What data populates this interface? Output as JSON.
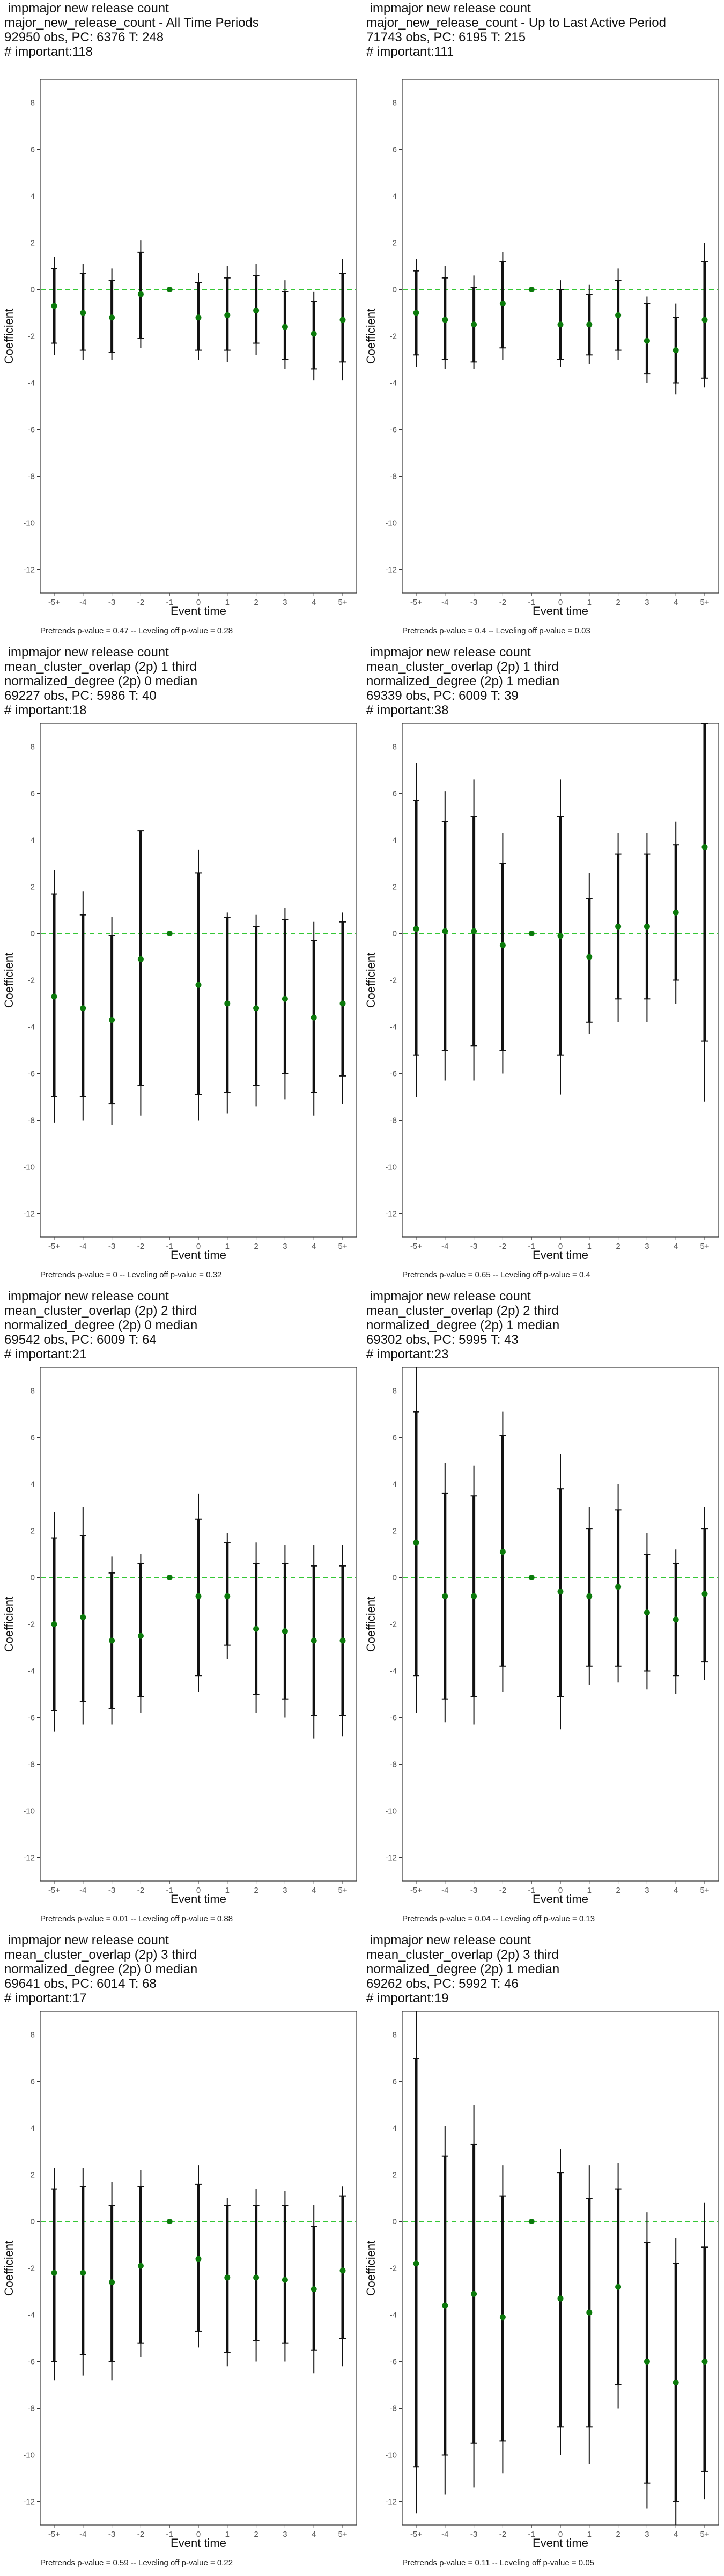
{
  "chart_data": [
    {
      "type": "scatter",
      "title": [
        "impmajor new release count",
        "major_new_release_count - All Time Periods",
        "92950 obs, PC: 6376 T: 248",
        "# important:118"
      ],
      "xlabel": "Event time",
      "ylabel": "Coefficient",
      "categories": [
        "-5+",
        "-4",
        "-3",
        "-2",
        "-1",
        "0",
        "1",
        "2",
        "3",
        "4",
        "5+"
      ],
      "coef": [
        -0.7,
        -1.0,
        -1.2,
        -0.2,
        0.0,
        -1.2,
        -1.1,
        -0.9,
        -1.6,
        -1.9,
        -1.3
      ],
      "ci90": [
        [
          -2.3,
          0.9
        ],
        [
          -2.6,
          0.7
        ],
        [
          -2.7,
          0.4
        ],
        [
          -2.1,
          1.6
        ],
        null,
        [
          -2.6,
          0.3
        ],
        [
          -2.6,
          0.5
        ],
        [
          -2.3,
          0.6
        ],
        [
          -3.0,
          -0.1
        ],
        [
          -3.4,
          -0.5
        ],
        [
          -3.1,
          0.7
        ]
      ],
      "ci95": [
        [
          -2.8,
          1.4
        ],
        [
          -3.0,
          1.1
        ],
        [
          -3.0,
          0.9
        ],
        [
          -2.5,
          2.1
        ],
        null,
        [
          -3.0,
          0.7
        ],
        [
          -3.1,
          1.0
        ],
        [
          -2.8,
          1.1
        ],
        [
          -3.4,
          0.4
        ],
        [
          -3.9,
          -0.1
        ],
        [
          -3.9,
          1.3
        ]
      ],
      "ylim": [
        -13,
        9
      ],
      "yticks": [
        -12,
        -10,
        -8,
        -6,
        -4,
        -2,
        0,
        2,
        4,
        6,
        8
      ],
      "footer": "Pretrends p-value = 0.47 -- Leveling off p-value = 0.28"
    },
    {
      "type": "scatter",
      "title": [
        "impmajor new release count",
        "major_new_release_count - Up to Last Active Period",
        "71743 obs, PC: 6195 T: 215",
        "# important:111"
      ],
      "xlabel": "Event time",
      "ylabel": "Coefficient",
      "categories": [
        "-5+",
        "-4",
        "-3",
        "-2",
        "-1",
        "0",
        "1",
        "2",
        "3",
        "4",
        "5+"
      ],
      "coef": [
        -1.0,
        -1.3,
        -1.5,
        -0.6,
        0.0,
        -1.5,
        -1.5,
        -1.1,
        -2.2,
        -2.6,
        -1.3
      ],
      "ci90": [
        [
          -2.8,
          0.8
        ],
        [
          -3.0,
          0.5
        ],
        [
          -3.1,
          0.1
        ],
        [
          -2.5,
          1.2
        ],
        null,
        [
          -3.0,
          0.0
        ],
        [
          -2.8,
          -0.2
        ],
        [
          -2.6,
          0.4
        ],
        [
          -3.6,
          -0.6
        ],
        [
          -4.0,
          -1.2
        ],
        [
          -3.8,
          1.2
        ]
      ],
      "ci95": [
        [
          -3.3,
          1.3
        ],
        [
          -3.4,
          1.0
        ],
        [
          -3.4,
          0.6
        ],
        [
          -3.0,
          1.6
        ],
        null,
        [
          -3.3,
          0.4
        ],
        [
          -3.2,
          0.2
        ],
        [
          -3.0,
          0.9
        ],
        [
          -4.0,
          -0.3
        ],
        [
          -4.5,
          -0.6
        ],
        [
          -4.2,
          2.0
        ]
      ],
      "ylim": [
        -13,
        9
      ],
      "yticks": [
        -12,
        -10,
        -8,
        -6,
        -4,
        -2,
        0,
        2,
        4,
        6,
        8
      ],
      "footer": "Pretrends p-value = 0.4 -- Leveling off p-value = 0.03"
    },
    {
      "type": "scatter",
      "title": [
        "impmajor new release count",
        "mean_cluster_overlap (2p) 1 third",
        "normalized_degree (2p) 0 median",
        "69227 obs, PC: 5986 T: 40",
        "# important:18"
      ],
      "xlabel": "Event time",
      "ylabel": "Coefficient",
      "categories": [
        "-5+",
        "-4",
        "-3",
        "-2",
        "-1",
        "0",
        "1",
        "2",
        "3",
        "4",
        "5+"
      ],
      "coef": [
        -2.7,
        -3.2,
        -3.7,
        -1.1,
        0.0,
        -2.2,
        -3.0,
        -3.2,
        -2.8,
        -3.6,
        -3.0
      ],
      "ci90": [
        [
          -7.0,
          1.7
        ],
        [
          -7.0,
          0.8
        ],
        [
          -7.3,
          -0.1
        ],
        [
          -6.5,
          4.4
        ],
        null,
        [
          -6.9,
          2.6
        ],
        [
          -6.8,
          0.7
        ],
        [
          -6.5,
          0.3
        ],
        [
          -6.0,
          0.6
        ],
        [
          -6.8,
          -0.3
        ],
        [
          -6.1,
          0.5
        ]
      ],
      "ci95": [
        [
          -8.1,
          2.7
        ],
        [
          -8.0,
          1.8
        ],
        [
          -8.2,
          0.7
        ],
        [
          -7.8,
          4.4
        ],
        null,
        [
          -8.0,
          3.6
        ],
        [
          -7.7,
          0.9
        ],
        [
          -7.4,
          0.8
        ],
        [
          -7.1,
          1.1
        ],
        [
          -7.8,
          0.5
        ],
        [
          -7.3,
          0.9
        ]
      ],
      "ylim": [
        -13,
        9
      ],
      "yticks": [
        -12,
        -10,
        -8,
        -6,
        -4,
        -2,
        0,
        2,
        4,
        6,
        8
      ],
      "footer": "Pretrends p-value = 0 -- Leveling off p-value = 0.32"
    },
    {
      "type": "scatter",
      "title": [
        "impmajor new release count",
        "mean_cluster_overlap (2p) 1 third",
        "normalized_degree (2p) 1 median",
        "69339 obs, PC: 6009 T: 39",
        "# important:38"
      ],
      "xlabel": "Event time",
      "ylabel": "Coefficient",
      "categories": [
        "-5+",
        "-4",
        "-3",
        "-2",
        "-1",
        "0",
        "1",
        "2",
        "3",
        "4",
        "5+"
      ],
      "coef": [
        0.2,
        0.1,
        0.1,
        -0.5,
        0.0,
        -0.1,
        -1.0,
        0.3,
        0.3,
        0.9,
        3.7
      ],
      "ci90": [
        [
          -5.2,
          5.7
        ],
        [
          -5.0,
          4.8
        ],
        [
          -4.8,
          5.0
        ],
        [
          -5.0,
          3.0
        ],
        null,
        [
          -5.2,
          5.0
        ],
        [
          -3.8,
          1.5
        ],
        [
          -2.8,
          3.4
        ],
        [
          -2.8,
          3.4
        ],
        [
          -2.0,
          3.8
        ],
        [
          -4.6,
          9.0
        ]
      ],
      "ci95": [
        [
          -7.0,
          7.3
        ],
        [
          -6.3,
          6.1
        ],
        [
          -6.3,
          6.6
        ],
        [
          -6.0,
          4.3
        ],
        null,
        [
          -6.9,
          6.6
        ],
        [
          -4.3,
          2.6
        ],
        [
          -3.8,
          4.3
        ],
        [
          -3.8,
          4.3
        ],
        [
          -3.0,
          4.8
        ],
        [
          -7.2,
          9.0
        ]
      ],
      "ylim": [
        -13,
        9
      ],
      "yticks": [
        -12,
        -10,
        -8,
        -6,
        -4,
        -2,
        0,
        2,
        4,
        6,
        8
      ],
      "footer": "Pretrends p-value = 0.65 -- Leveling off p-value = 0.4"
    },
    {
      "type": "scatter",
      "title": [
        "impmajor new release count",
        "mean_cluster_overlap (2p) 2 third",
        "normalized_degree (2p) 0 median",
        "69542 obs, PC: 6009 T: 64",
        "# important:21"
      ],
      "xlabel": "Event time",
      "ylabel": "Coefficient",
      "categories": [
        "-5+",
        "-4",
        "-3",
        "-2",
        "-1",
        "0",
        "1",
        "2",
        "3",
        "4",
        "5+"
      ],
      "coef": [
        -2.0,
        -1.7,
        -2.7,
        -2.5,
        0.0,
        -0.8,
        -0.8,
        -2.2,
        -2.3,
        -2.7,
        -2.7
      ],
      "ci90": [
        [
          -5.7,
          1.7
        ],
        [
          -5.3,
          1.8
        ],
        [
          -5.6,
          0.2
        ],
        [
          -5.1,
          0.6
        ],
        null,
        [
          -4.2,
          2.5
        ],
        [
          -2.9,
          1.5
        ],
        [
          -5.0,
          0.6
        ],
        [
          -5.2,
          0.6
        ],
        [
          -5.9,
          0.5
        ],
        [
          -5.9,
          0.5
        ]
      ],
      "ci95": [
        [
          -6.6,
          2.8
        ],
        [
          -6.3,
          3.0
        ],
        [
          -6.3,
          0.9
        ],
        [
          -5.8,
          1.0
        ],
        null,
        [
          -4.9,
          3.6
        ],
        [
          -3.5,
          1.9
        ],
        [
          -5.8,
          1.5
        ],
        [
          -6.0,
          1.4
        ],
        [
          -6.9,
          1.4
        ],
        [
          -6.8,
          1.4
        ]
      ],
      "ylim": [
        -13,
        9
      ],
      "yticks": [
        -12,
        -10,
        -8,
        -6,
        -4,
        -2,
        0,
        2,
        4,
        6,
        8
      ],
      "footer": "Pretrends p-value = 0.01 -- Leveling off p-value = 0.88"
    },
    {
      "type": "scatter",
      "title": [
        "impmajor new release count",
        "mean_cluster_overlap (2p) 2 third",
        "normalized_degree (2p) 1 median",
        "69302 obs, PC: 5995 T: 43",
        "# important:23"
      ],
      "xlabel": "Event time",
      "ylabel": "Coefficient",
      "categories": [
        "-5+",
        "-4",
        "-3",
        "-2",
        "-1",
        "0",
        "1",
        "2",
        "3",
        "4",
        "5+"
      ],
      "coef": [
        1.5,
        -0.8,
        -0.8,
        1.1,
        0.0,
        -0.6,
        -0.8,
        -0.4,
        -1.5,
        -1.8,
        -0.7
      ],
      "ci90": [
        [
          -4.2,
          7.1
        ],
        [
          -5.2,
          3.6
        ],
        [
          -5.1,
          3.5
        ],
        [
          -3.8,
          6.1
        ],
        null,
        [
          -5.1,
          3.8
        ],
        [
          -3.8,
          2.1
        ],
        [
          -3.8,
          2.9
        ],
        [
          -4.0,
          1.0
        ],
        [
          -4.2,
          0.6
        ],
        [
          -3.6,
          2.1
        ]
      ],
      "ci95": [
        [
          -5.8,
          9.0
        ],
        [
          -6.2,
          4.9
        ],
        [
          -6.3,
          4.8
        ],
        [
          -4.9,
          7.1
        ],
        null,
        [
          -6.5,
          5.3
        ],
        [
          -4.6,
          3.0
        ],
        [
          -4.5,
          4.0
        ],
        [
          -4.8,
          1.9
        ],
        [
          -5.0,
          1.2
        ],
        [
          -4.4,
          3.0
        ]
      ],
      "ylim": [
        -13,
        9
      ],
      "yticks": [
        -12,
        -10,
        -8,
        -6,
        -4,
        -2,
        0,
        2,
        4,
        6,
        8
      ],
      "footer": "Pretrends p-value = 0.04 -- Leveling off p-value = 0.13"
    },
    {
      "type": "scatter",
      "title": [
        "impmajor new release count",
        "mean_cluster_overlap (2p) 3 third",
        "normalized_degree (2p) 0 median",
        "69641 obs, PC: 6014 T: 68",
        "# important:17"
      ],
      "xlabel": "Event time",
      "ylabel": "Coefficient",
      "categories": [
        "-5+",
        "-4",
        "-3",
        "-2",
        "-1",
        "0",
        "1",
        "2",
        "3",
        "4",
        "5+"
      ],
      "coef": [
        -2.2,
        -2.2,
        -2.6,
        -1.9,
        0.0,
        -1.6,
        -2.4,
        -2.4,
        -2.5,
        -2.9,
        -2.1
      ],
      "ci90": [
        [
          -6.0,
          1.4
        ],
        [
          -5.7,
          1.5
        ],
        [
          -6.0,
          0.7
        ],
        [
          -5.2,
          1.5
        ],
        null,
        [
          -4.7,
          1.6
        ],
        [
          -5.6,
          0.7
        ],
        [
          -5.1,
          0.7
        ],
        [
          -5.2,
          0.7
        ],
        [
          -5.5,
          -0.2
        ],
        [
          -5.0,
          1.1
        ]
      ],
      "ci95": [
        [
          -6.8,
          2.3
        ],
        [
          -6.6,
          2.3
        ],
        [
          -6.8,
          1.7
        ],
        [
          -5.8,
          2.2
        ],
        null,
        [
          -5.4,
          2.4
        ],
        [
          -6.2,
          1.0
        ],
        [
          -6.0,
          1.4
        ],
        [
          -6.0,
          1.3
        ],
        [
          -6.5,
          0.7
        ],
        [
          -6.2,
          1.5
        ]
      ],
      "ylim": [
        -13,
        9
      ],
      "yticks": [
        -12,
        -10,
        -8,
        -6,
        -4,
        -2,
        0,
        2,
        4,
        6,
        8
      ],
      "footer": "Pretrends p-value = 0.59 -- Leveling off p-value = 0.22"
    },
    {
      "type": "scatter",
      "title": [
        "impmajor new release count",
        "mean_cluster_overlap (2p) 3 third",
        "normalized_degree (2p) 1 median",
        "69262 obs, PC: 5992 T: 46",
        "# important:19"
      ],
      "xlabel": "Event time",
      "ylabel": "Coefficient",
      "categories": [
        "-5+",
        "-4",
        "-3",
        "-2",
        "-1",
        "0",
        "1",
        "2",
        "3",
        "4",
        "5+"
      ],
      "coef": [
        -1.8,
        -3.6,
        -3.1,
        -4.1,
        0.0,
        -3.3,
        -3.9,
        -2.8,
        -6.0,
        -6.9,
        -6.0
      ],
      "ci90": [
        [
          -10.5,
          7.0
        ],
        [
          -10.0,
          2.8
        ],
        [
          -9.5,
          3.3
        ],
        [
          -9.4,
          1.1
        ],
        null,
        [
          -8.8,
          2.1
        ],
        [
          -8.8,
          1.0
        ],
        [
          -7.0,
          1.4
        ],
        [
          -11.2,
          -0.9
        ],
        [
          -12.0,
          -1.8
        ],
        [
          -10.7,
          -1.1
        ]
      ],
      "ci95": [
        [
          -12.5,
          9.0
        ],
        [
          -11.7,
          4.1
        ],
        [
          -11.4,
          5.0
        ],
        [
          -10.8,
          2.4
        ],
        null,
        [
          -10.0,
          3.1
        ],
        [
          -10.4,
          2.4
        ],
        [
          -8.0,
          2.5
        ],
        [
          -12.3,
          0.4
        ],
        [
          -13.0,
          -0.7
        ],
        [
          -11.9,
          0.8
        ]
      ],
      "ylim": [
        -13,
        9
      ],
      "yticks": [
        -12,
        -10,
        -8,
        -6,
        -4,
        -2,
        0,
        2,
        4,
        6,
        8
      ],
      "footer": "Pretrends p-value = 0.11 -- Leveling off p-value = 0.05"
    }
  ],
  "colors": {
    "zero_line": "#35c735",
    "point": "#0b7a0b",
    "bar": "#111111",
    "frame": "#333333",
    "tick_text": "#555555"
  }
}
